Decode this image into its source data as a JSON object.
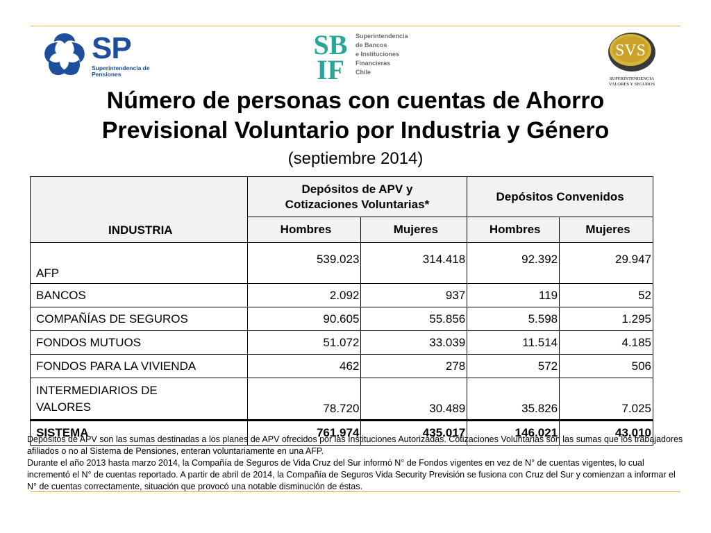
{
  "logos": {
    "sp": {
      "mark": "SP",
      "lines": [
        "Superintendencia de",
        "Pensiones"
      ],
      "color": "#1d4f9c"
    },
    "sbif": {
      "mark_top": "SB",
      "mark_bottom": "IF",
      "lines": [
        "Superintendencia",
        "de Bancos",
        "e Instituciones",
        "Financieras",
        "Chile"
      ],
      "color": "#2aa59a"
    },
    "svs": {
      "mark": "SVS",
      "lines": [
        "SUPERINTENDENCIA",
        "VALORES Y SEGUROS"
      ],
      "color": "#c9a227"
    }
  },
  "title_lines": [
    "Número de personas con cuentas de Ahorro",
    "Previsional Voluntario por Industria y Género"
  ],
  "subtitle": "(septiembre 2014)",
  "table": {
    "header": {
      "industria": "INDUSTRIA",
      "group1": [
        "Depósitos de APV y",
        "Cotizaciones Voluntarias*"
      ],
      "group2": "Depósitos Convenidos",
      "hombres": "Hombres",
      "mujeres": "Mujeres"
    },
    "rows": [
      {
        "name": [
          "AFP"
        ],
        "values": [
          "539.023",
          "314.418",
          "92.392",
          "29.947"
        ]
      },
      {
        "name": [
          "BANCOS"
        ],
        "values": [
          "2.092",
          "937",
          "119",
          "52"
        ]
      },
      {
        "name": [
          "COMPAÑÍAS DE SEGUROS"
        ],
        "values": [
          "90.605",
          "55.856",
          "5.598",
          "1.295"
        ]
      },
      {
        "name": [
          "FONDOS MUTUOS"
        ],
        "values": [
          "51.072",
          "33.039",
          "11.514",
          "4.185"
        ]
      },
      {
        "name": [
          "FONDOS PARA LA VIVIENDA"
        ],
        "values": [
          "462",
          "278",
          "572",
          "506"
        ]
      },
      {
        "name": [
          "INTERMEDIARIOS DE",
          "VALORES"
        ],
        "values": [
          "78.720",
          "30.489",
          "35.826",
          "7.025"
        ]
      }
    ],
    "total": {
      "name": "SISTEMA",
      "values": [
        "761.974",
        "435.017",
        "146.021",
        "43.010"
      ]
    }
  },
  "notes": [
    "Depósitos de APV son las sumas destinadas a los planes de APV ofrecidos por las Instituciones Autorizadas. Cotizaciones Voluntarias son las sumas que los trabajadores afiliados o no al Sistema de Pensiones, enteran voluntariamente en una AFP.",
    "Durante el año 2013 hasta marzo 2014, la Compañía de Seguros de Vida Cruz del Sur informó N° de Fondos vigentes en vez  de N° de cuentas vigentes, lo cual incrementó el N° de cuentas reportado. A partir de abril de 2014,  la Compañía de Seguros Vida Security Previsión se fusiona con Cruz del Sur y comienzan a informar el N° de cuentas correctamente, situación que provocó una notable disminución de éstas."
  ]
}
